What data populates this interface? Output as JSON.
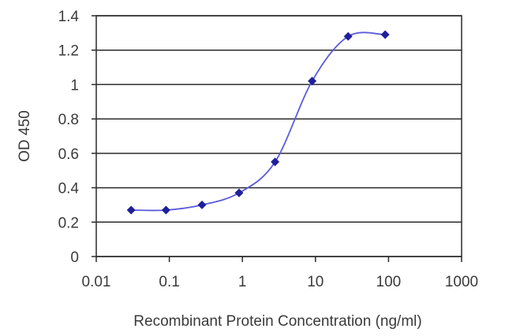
{
  "chart_data": {
    "type": "line",
    "title": "",
    "xlabel": "Recombinant Protein Concentration (ng/ml)",
    "ylabel": "OD 450",
    "x_scale": "log",
    "xlim": [
      0.01,
      1000
    ],
    "ylim": [
      0,
      1.4
    ],
    "x_ticks": [
      0.01,
      0.1,
      1,
      10,
      100,
      1000
    ],
    "x_tick_labels": [
      "0.01",
      "0.1",
      "1",
      "10",
      "100",
      "1000"
    ],
    "y_ticks": [
      0,
      0.2,
      0.4,
      0.6,
      0.8,
      1,
      1.2,
      1.4
    ],
    "y_tick_labels": [
      "0",
      "0.2",
      "0.4",
      "0.6",
      "0.8",
      "1",
      "1.2",
      "1.4"
    ],
    "grid": "horizontal",
    "legend": "none",
    "colors": {
      "series": "#1f1f9a",
      "line": "#5a5adc",
      "grid": "#2a2a2a",
      "frame": "#2a2a2a"
    },
    "series": [
      {
        "x": [
          0.03,
          0.09,
          0.28,
          0.9,
          2.8,
          9,
          28,
          90
        ],
        "y": [
          0.27,
          0.27,
          0.3,
          0.37,
          0.55,
          1.02,
          1.28,
          1.29
        ]
      }
    ]
  }
}
